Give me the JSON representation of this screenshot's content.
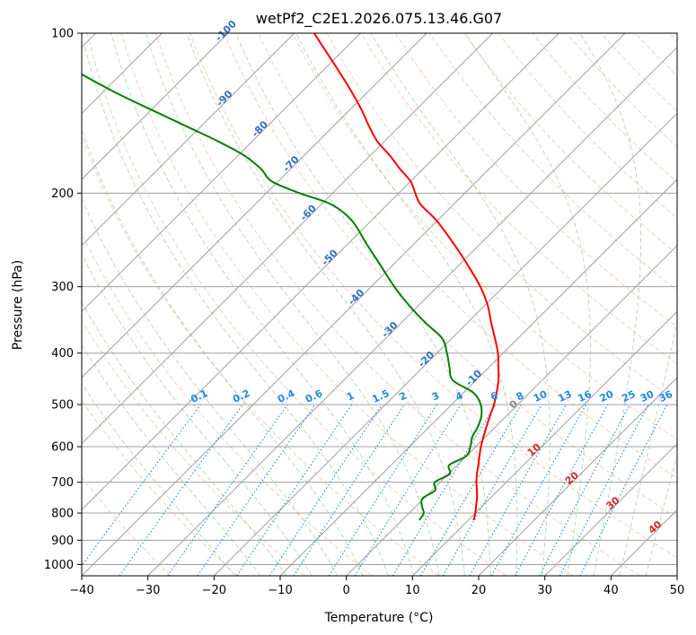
{
  "chart_data": {
    "type": "line",
    "title": "wetPf2_C2E1.2026.075.13.46.G07",
    "xlabel": "Temperature (°C)",
    "ylabel": "Pressure (hPa)",
    "xlim": [
      -40,
      50
    ],
    "ylim": [
      1050,
      100
    ],
    "x_ticks": [
      -40,
      -30,
      -20,
      -10,
      0,
      10,
      20,
      30,
      40,
      50
    ],
    "x_tick_labels": [
      "−40",
      "−30",
      "−20",
      "−10",
      "0",
      "10",
      "20",
      "30",
      "40",
      "50"
    ],
    "y_ticks": [
      100,
      200,
      300,
      400,
      500,
      600,
      700,
      800,
      900,
      1000
    ],
    "y_tick_labels": [
      "100",
      "200",
      "300",
      "400",
      "500",
      "600",
      "700",
      "800",
      "900",
      "1000"
    ],
    "isotherms": [
      -100,
      -90,
      -80,
      -70,
      -60,
      -50,
      -40,
      -30,
      -20,
      -10,
      0,
      10,
      20,
      30,
      40,
      50
    ],
    "isotherm_labels": [
      {
        "text": "-100",
        "x": -100,
        "p": 100
      },
      {
        "text": "-90",
        "x": -90,
        "p": 134
      },
      {
        "text": "-80",
        "x": -80,
        "p": 153
      },
      {
        "text": "-70",
        "x": -70,
        "p": 178
      },
      {
        "text": "-60",
        "x": -60,
        "p": 220
      },
      {
        "text": "-50",
        "x": -50,
        "p": 267
      },
      {
        "text": "-40",
        "x": -40,
        "p": 317
      },
      {
        "text": "-30",
        "x": -30,
        "p": 365
      },
      {
        "text": "-20",
        "x": -20,
        "p": 415
      },
      {
        "text": "-10",
        "x": -10,
        "p": 450
      }
    ],
    "mixing_ratios": [
      0.1,
      0.2,
      0.4,
      0.6,
      1,
      1.5,
      2,
      3,
      4,
      6,
      8,
      10,
      13,
      16,
      20,
      25,
      30,
      36
    ],
    "mixing_ratio_labels": [
      "0.1",
      "0.2",
      "0.4",
      "0.6",
      "1",
      "1.5",
      "2",
      "3",
      "4",
      "6",
      "8",
      "10",
      "13",
      "16",
      "20",
      "25",
      "30",
      "36"
    ],
    "moist_adiabat_labels": [
      {
        "text": "0",
        "t": 0,
        "p": 505
      },
      {
        "text": "10",
        "t": 10,
        "p": 615
      },
      {
        "text": "20",
        "t": 20,
        "p": 695
      },
      {
        "text": "30",
        "t": 30,
        "p": 775
      },
      {
        "text": "40",
        "t": 40,
        "p": 860
      }
    ],
    "series": [
      {
        "name": "Temperature",
        "color": "#ff0000",
        "p": [
          825,
          800,
          775,
          750,
          725,
          700,
          675,
          650,
          625,
          600,
          575,
          550,
          525,
          500,
          475,
          450,
          425,
          400,
          375,
          350,
          325,
          300,
          275,
          250,
          225,
          210,
          200,
          190,
          180,
          170,
          160,
          150,
          140,
          130,
          120,
          110,
          100
        ],
        "t": [
          10.8,
          10.0,
          9.0,
          8.0,
          6.8,
          5.5,
          4.3,
          3.2,
          2.0,
          0.8,
          -0.3,
          -1.4,
          -2.5,
          -3.6,
          -5.0,
          -6.6,
          -8.6,
          -10.8,
          -13.5,
          -16.5,
          -19.6,
          -23.5,
          -28.3,
          -33.8,
          -40.2,
          -45.0,
          -47.5,
          -50.0,
          -53.5,
          -57.0,
          -61.0,
          -64.5,
          -68.0,
          -72.0,
          -76.5,
          -81.5,
          -87.0
        ]
      },
      {
        "name": "Dewpoint",
        "color": "#008000",
        "p": [
          825,
          800,
          775,
          750,
          725,
          700,
          675,
          650,
          625,
          600,
          575,
          550,
          525,
          500,
          475,
          450,
          425,
          400,
          375,
          350,
          325,
          300,
          275,
          250,
          225,
          210,
          200,
          190,
          180,
          170,
          160,
          150,
          140,
          130,
          120,
          110,
          100
        ],
        "t": [
          2.6,
          2.2,
          0.8,
          -0.2,
          0.5,
          -0.8,
          0.2,
          -1.2,
          0.0,
          -0.8,
          -2.0,
          -2.7,
          -3.8,
          -5.6,
          -8.5,
          -13.5,
          -16.0,
          -18.5,
          -21.5,
          -26.5,
          -31.5,
          -36.5,
          -41.5,
          -47.0,
          -53.0,
          -58.5,
          -65.0,
          -71.0,
          -74.5,
          -79.0,
          -85.0,
          -92.0,
          -99.5,
          -107.5,
          -115.5,
          -123.5,
          -131.5
        ]
      }
    ]
  }
}
